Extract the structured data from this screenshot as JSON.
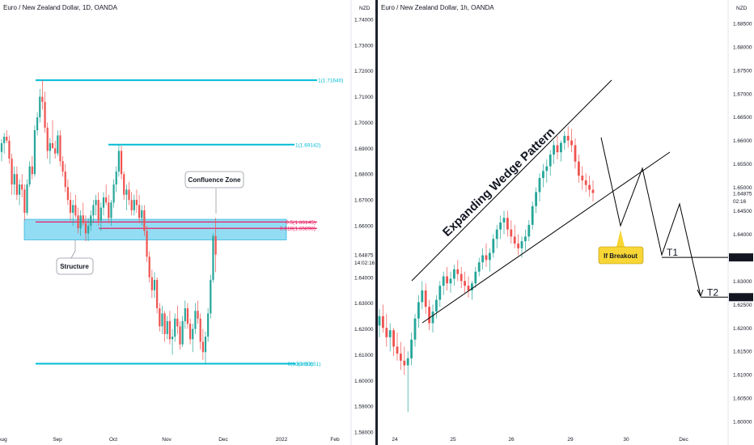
{
  "colors": {
    "up": "#26a69a",
    "down": "#ef5350",
    "level": "#00bcd4",
    "fib": "#e91e63",
    "zone": "#7fd6f2",
    "zone_border": "#0fa8d6",
    "pattern": "#000000",
    "callout": "#f7d635"
  },
  "chart_data": [
    {
      "id": "left",
      "type": "candlestick",
      "title": "Euro / New Zealand Dollar, 1D, OANDA",
      "currency": "NZD",
      "ylim": [
        1.575,
        1.7475
      ],
      "y_ticks": [
        "1.74000",
        "1.73000",
        "1.72000",
        "1.71000",
        "1.70000",
        "1.69000",
        "1.68000",
        "1.67000",
        "1.66000",
        "1.64875",
        "1.64000",
        "1.63000",
        "1.62000",
        "1.61000",
        "1.60000",
        "1.59000",
        "1.58000"
      ],
      "x_ticks": [
        "Aug",
        "Sep",
        "Oct",
        "Nov",
        "Dec",
        "2022",
        "Feb"
      ],
      "price_label": "1.64875",
      "countdown": "14:02:16",
      "levels": [
        {
          "label": "1(1.71640)",
          "value": 1.7164
        },
        {
          "label": "1(1.69142)",
          "value": 1.69142
        },
        {
          "label": "0.5(1.66145)",
          "value": 1.66145
        },
        {
          "label": "0.618(1.65898)",
          "value": 1.65898
        },
        {
          "label": "0(1.60651)",
          "value": 1.60651
        },
        {
          "label": "0(1.60651)",
          "value": 1.60651
        }
      ],
      "zone": [
        1.6545,
        1.6625
      ],
      "annotations": [
        "Confluence Zone",
        "Structure"
      ],
      "candles": [
        [
          1.6886,
          1.6935,
          1.685,
          1.692
        ],
        [
          1.692,
          1.696,
          1.688,
          1.6945
        ],
        [
          1.6945,
          1.697,
          1.692,
          1.693
        ],
        [
          1.693,
          1.695,
          1.684,
          1.686
        ],
        [
          1.686,
          1.688,
          1.672,
          1.676
        ],
        [
          1.676,
          1.683,
          1.672,
          1.68
        ],
        [
          1.68,
          1.683,
          1.67,
          1.672
        ],
        [
          1.672,
          1.678,
          1.668,
          1.676
        ],
        [
          1.676,
          1.68,
          1.671,
          1.674
        ],
        [
          1.674,
          1.676,
          1.662,
          1.665
        ],
        [
          1.665,
          1.678,
          1.664,
          1.676
        ],
        [
          1.676,
          1.685,
          1.675,
          1.683
        ],
        [
          1.683,
          1.687,
          1.678,
          1.68
        ],
        [
          1.68,
          1.699,
          1.679,
          1.697
        ],
        [
          1.697,
          1.704,
          1.695,
          1.702
        ],
        [
          1.702,
          1.713,
          1.7,
          1.71
        ],
        [
          1.71,
          1.7164,
          1.705,
          1.708
        ],
        [
          1.708,
          1.712,
          1.696,
          1.698
        ],
        [
          1.698,
          1.7,
          1.686,
          1.689
        ],
        [
          1.689,
          1.694,
          1.684,
          1.692
        ],
        [
          1.692,
          1.701,
          1.69,
          1.69
        ],
        [
          1.69,
          1.693,
          1.686,
          1.688
        ],
        [
          1.688,
          1.697,
          1.687,
          1.695
        ],
        [
          1.695,
          1.697,
          1.683,
          1.685
        ],
        [
          1.685,
          1.687,
          1.679,
          1.681
        ],
        [
          1.681,
          1.684,
          1.673,
          1.675
        ],
        [
          1.675,
          1.678,
          1.668,
          1.67
        ],
        [
          1.67,
          1.673,
          1.662,
          1.665
        ],
        [
          1.665,
          1.67,
          1.66,
          1.668
        ],
        [
          1.668,
          1.672,
          1.663,
          1.664
        ],
        [
          1.664,
          1.667,
          1.657,
          1.659
        ],
        [
          1.659,
          1.666,
          1.656,
          1.664
        ],
        [
          1.664,
          1.669,
          1.66,
          1.661
        ],
        [
          1.661,
          1.664,
          1.654,
          1.657
        ],
        [
          1.657,
          1.663,
          1.654,
          1.66
        ],
        [
          1.66,
          1.666,
          1.658,
          1.664
        ],
        [
          1.664,
          1.67,
          1.661,
          1.668
        ],
        [
          1.668,
          1.672,
          1.664,
          1.67
        ],
        [
          1.67,
          1.673,
          1.66,
          1.662
        ],
        [
          1.662,
          1.669,
          1.658,
          1.667
        ],
        [
          1.667,
          1.673,
          1.664,
          1.671
        ],
        [
          1.671,
          1.676,
          1.668,
          1.669
        ],
        [
          1.669,
          1.672,
          1.661,
          1.663
        ],
        [
          1.663,
          1.67,
          1.66,
          1.669
        ],
        [
          1.669,
          1.678,
          1.667,
          1.676
        ],
        [
          1.676,
          1.683,
          1.673,
          1.681
        ],
        [
          1.681,
          1.6914,
          1.679,
          1.689
        ],
        [
          1.689,
          1.691,
          1.678,
          1.68
        ],
        [
          1.68,
          1.681,
          1.67,
          1.672
        ],
        [
          1.672,
          1.676,
          1.666,
          1.674
        ],
        [
          1.674,
          1.677,
          1.668,
          1.67
        ],
        [
          1.67,
          1.673,
          1.664,
          1.666
        ],
        [
          1.666,
          1.672,
          1.664,
          1.67
        ],
        [
          1.67,
          1.674,
          1.665,
          1.668
        ],
        [
          1.668,
          1.672,
          1.661,
          1.663
        ],
        [
          1.663,
          1.668,
          1.66,
          1.666
        ],
        [
          1.666,
          1.668,
          1.656,
          1.658
        ],
        [
          1.658,
          1.66,
          1.646,
          1.648
        ],
        [
          1.648,
          1.65,
          1.638,
          1.64
        ],
        [
          1.64,
          1.643,
          1.632,
          1.635
        ],
        [
          1.635,
          1.642,
          1.632,
          1.639
        ],
        [
          1.639,
          1.64,
          1.626,
          1.628
        ],
        [
          1.628,
          1.63,
          1.619,
          1.621
        ],
        [
          1.621,
          1.629,
          1.618,
          1.626
        ],
        [
          1.626,
          1.627,
          1.615,
          1.618
        ],
        [
          1.618,
          1.625,
          1.616,
          1.623
        ],
        [
          1.623,
          1.627,
          1.614,
          1.616
        ],
        [
          1.616,
          1.62,
          1.61,
          1.617
        ],
        [
          1.617,
          1.626,
          1.615,
          1.624
        ],
        [
          1.624,
          1.629,
          1.618,
          1.621
        ],
        [
          1.621,
          1.623,
          1.612,
          1.614
        ],
        [
          1.614,
          1.625,
          1.613,
          1.623
        ],
        [
          1.623,
          1.631,
          1.62,
          1.628
        ],
        [
          1.628,
          1.63,
          1.62,
          1.622
        ],
        [
          1.622,
          1.624,
          1.614,
          1.616
        ],
        [
          1.616,
          1.622,
          1.611,
          1.62
        ],
        [
          1.62,
          1.63,
          1.618,
          1.627
        ],
        [
          1.627,
          1.631,
          1.622,
          1.624
        ],
        [
          1.624,
          1.626,
          1.612,
          1.615
        ],
        [
          1.615,
          1.62,
          1.608,
          1.611
        ],
        [
          1.611,
          1.619,
          1.6065,
          1.617
        ],
        [
          1.617,
          1.628,
          1.615,
          1.626
        ],
        [
          1.626,
          1.641,
          1.624,
          1.639
        ],
        [
          1.639,
          1.657,
          1.638,
          1.656
        ],
        [
          1.656,
          1.663,
          1.642,
          1.6488
        ]
      ]
    },
    {
      "id": "right",
      "type": "candlestick",
      "title": "Euro / New Zealand Dollar, 1h, OANDA",
      "currency": "NZD",
      "ylim": [
        1.595,
        1.69
      ],
      "y_ticks": [
        "1.68500",
        "1.68000",
        "1.67500",
        "1.67000",
        "1.66500",
        "1.66000",
        "1.65500",
        "1.65000",
        "1.64875",
        "1.64500",
        "1.64000",
        "1.63500",
        "1.63000",
        "1.62500",
        "1.62000",
        "1.61500",
        "1.61000",
        "1.60500",
        "1.60000"
      ],
      "x_ticks": [
        "24",
        "25",
        "26",
        "29",
        "30",
        "Dec"
      ],
      "price_label": "1.64875",
      "countdown": "02:16",
      "targets": [
        {
          "label": "T1",
          "value": 1.63505,
          "tag": "1.63505"
        },
        {
          "label": "T2",
          "value": 1.62656,
          "tag": "1.62656"
        }
      ],
      "annotations": [
        "Expanding Wedge Pattern",
        "If Breakout"
      ],
      "candles": [
        [
          1.6205,
          1.624,
          1.618,
          1.6225
        ],
        [
          1.6225,
          1.625,
          1.619,
          1.62
        ],
        [
          1.62,
          1.623,
          1.616,
          1.618
        ],
        [
          1.618,
          1.621,
          1.615,
          1.6195
        ],
        [
          1.6195,
          1.62,
          1.614,
          1.616
        ],
        [
          1.616,
          1.619,
          1.613,
          1.6145
        ],
        [
          1.6145,
          1.617,
          1.611,
          1.613
        ],
        [
          1.613,
          1.616,
          1.61,
          1.612
        ],
        [
          1.612,
          1.615,
          1.602,
          1.6135
        ],
        [
          1.6135,
          1.619,
          1.612,
          1.6175
        ],
        [
          1.6175,
          1.623,
          1.616,
          1.622
        ],
        [
          1.622,
          1.627,
          1.62,
          1.6255
        ],
        [
          1.6255,
          1.63,
          1.624,
          1.628
        ],
        [
          1.628,
          1.6295,
          1.623,
          1.6245
        ],
        [
          1.6245,
          1.626,
          1.6195,
          1.621
        ],
        [
          1.621,
          1.625,
          1.619,
          1.6235
        ],
        [
          1.6235,
          1.627,
          1.622,
          1.626
        ],
        [
          1.626,
          1.63,
          1.6245,
          1.629
        ],
        [
          1.629,
          1.632,
          1.627,
          1.631
        ],
        [
          1.631,
          1.633,
          1.628,
          1.6295
        ],
        [
          1.6295,
          1.632,
          1.6275,
          1.6305
        ],
        [
          1.6305,
          1.6335,
          1.629,
          1.6325
        ],
        [
          1.6325,
          1.6345,
          1.63,
          1.6315
        ],
        [
          1.6315,
          1.633,
          1.6285,
          1.63
        ],
        [
          1.63,
          1.632,
          1.6275,
          1.629
        ],
        [
          1.629,
          1.631,
          1.6265,
          1.628
        ],
        [
          1.628,
          1.63,
          1.626,
          1.6295
        ],
        [
          1.6295,
          1.633,
          1.6285,
          1.632
        ],
        [
          1.632,
          1.635,
          1.631,
          1.634
        ],
        [
          1.634,
          1.637,
          1.6325,
          1.6355
        ],
        [
          1.6355,
          1.638,
          1.633,
          1.6345
        ],
        [
          1.6345,
          1.637,
          1.632,
          1.636
        ],
        [
          1.636,
          1.64,
          1.635,
          1.639
        ],
        [
          1.639,
          1.642,
          1.637,
          1.641
        ],
        [
          1.641,
          1.644,
          1.639,
          1.6425
        ],
        [
          1.6425,
          1.645,
          1.64,
          1.6435
        ],
        [
          1.6435,
          1.645,
          1.6395,
          1.641
        ],
        [
          1.641,
          1.643,
          1.638,
          1.6395
        ],
        [
          1.6395,
          1.642,
          1.637,
          1.638
        ],
        [
          1.638,
          1.64,
          1.6355,
          1.637
        ],
        [
          1.637,
          1.6395,
          1.635,
          1.6385
        ],
        [
          1.6385,
          1.641,
          1.6365,
          1.6395
        ],
        [
          1.6395,
          1.643,
          1.6385,
          1.642
        ],
        [
          1.642,
          1.647,
          1.641,
          1.646
        ],
        [
          1.646,
          1.65,
          1.6445,
          1.649
        ],
        [
          1.649,
          1.653,
          1.647,
          1.652
        ],
        [
          1.652,
          1.655,
          1.65,
          1.6535
        ],
        [
          1.6535,
          1.656,
          1.651,
          1.6545
        ],
        [
          1.6545,
          1.658,
          1.6525,
          1.657
        ],
        [
          1.657,
          1.66,
          1.655,
          1.659
        ],
        [
          1.659,
          1.661,
          1.656,
          1.6575
        ],
        [
          1.6575,
          1.66,
          1.6555,
          1.6595
        ],
        [
          1.6595,
          1.662,
          1.658,
          1.661
        ],
        [
          1.661,
          1.663,
          1.6585,
          1.66
        ],
        [
          1.66,
          1.6625,
          1.6575,
          1.659
        ],
        [
          1.659,
          1.6605,
          1.654,
          1.6555
        ],
        [
          1.6555,
          1.657,
          1.651,
          1.6525
        ],
        [
          1.6525,
          1.6545,
          1.6495,
          1.6515
        ],
        [
          1.6515,
          1.653,
          1.649,
          1.6505
        ],
        [
          1.6505,
          1.6525,
          1.648,
          1.6495
        ],
        [
          1.6495,
          1.6515,
          1.647,
          1.6488
        ]
      ]
    }
  ]
}
